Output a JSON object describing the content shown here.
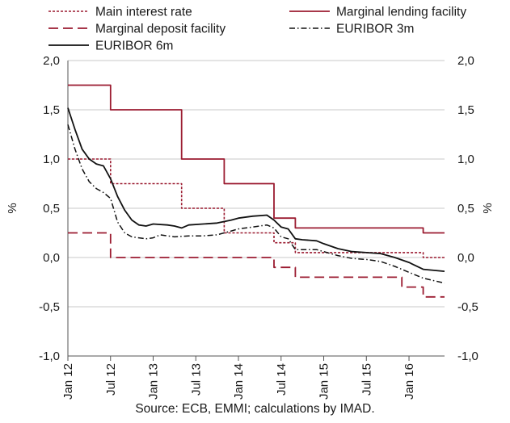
{
  "chart_data": {
    "type": "line",
    "title": "",
    "ylabel_left": "%",
    "ylabel_right": "%",
    "ylim": [
      -1.0,
      2.0
    ],
    "y_ticks": [
      "2,0",
      "1,5",
      "1,0",
      "0,5",
      "0,0",
      "-0,5",
      "-1,0"
    ],
    "y_tick_values": [
      2.0,
      1.5,
      1.0,
      0.5,
      0.0,
      -0.5,
      -1.0
    ],
    "x_ticks": [
      "Jan 12",
      "Jul 12",
      "Jan 13",
      "Jul 13",
      "Jan 14",
      "Jul 14",
      "Jan 15",
      "Jul 15",
      "Jan 16"
    ],
    "x_tick_values": [
      "2012-01",
      "2012-07",
      "2013-01",
      "2013-07",
      "2014-01",
      "2014-07",
      "2015-01",
      "2015-07",
      "2016-01"
    ],
    "xlim": [
      "2012-01",
      "2016-06"
    ],
    "grid": "horizontal",
    "legend_placement": "top",
    "series": [
      {
        "name": "Main interest rate",
        "style": "dotted",
        "color": "#9b1b30",
        "step": true,
        "points": [
          [
            "2012-01",
            1.0
          ],
          [
            "2012-07",
            0.75
          ],
          [
            "2013-05",
            0.5
          ],
          [
            "2013-11",
            0.25
          ],
          [
            "2014-06",
            0.15
          ],
          [
            "2014-09",
            0.05
          ],
          [
            "2016-03",
            0.0
          ],
          [
            "2016-06",
            0.0
          ]
        ]
      },
      {
        "name": "Marginal lending facility",
        "style": "solid",
        "color": "#9b1b30",
        "step": true,
        "points": [
          [
            "2012-01",
            1.75
          ],
          [
            "2012-07",
            1.5
          ],
          [
            "2013-05",
            1.0
          ],
          [
            "2013-11",
            0.75
          ],
          [
            "2014-06",
            0.4
          ],
          [
            "2014-09",
            0.3
          ],
          [
            "2016-03",
            0.25
          ],
          [
            "2016-06",
            0.25
          ]
        ]
      },
      {
        "name": "Marginal deposit facility",
        "style": "dashed",
        "color": "#9b1b30",
        "step": true,
        "points": [
          [
            "2012-01",
            0.25
          ],
          [
            "2012-07",
            0.0
          ],
          [
            "2014-06",
            -0.1
          ],
          [
            "2014-09",
            -0.2
          ],
          [
            "2015-12",
            -0.3
          ],
          [
            "2016-03",
            -0.4
          ],
          [
            "2016-06",
            -0.4
          ]
        ]
      },
      {
        "name": "EURIBOR 3m",
        "style": "dashdot",
        "color": "#111111",
        "step": false,
        "points": [
          [
            "2012-01",
            1.35
          ],
          [
            "2012-02",
            1.1
          ],
          [
            "2012-03",
            0.9
          ],
          [
            "2012-04",
            0.77
          ],
          [
            "2012-05",
            0.7
          ],
          [
            "2012-06",
            0.66
          ],
          [
            "2012-07",
            0.6
          ],
          [
            "2012-08",
            0.36
          ],
          [
            "2012-09",
            0.25
          ],
          [
            "2012-10",
            0.21
          ],
          [
            "2012-12",
            0.19
          ],
          [
            "2013-01",
            0.2
          ],
          [
            "2013-02",
            0.23
          ],
          [
            "2013-04",
            0.21
          ],
          [
            "2013-06",
            0.22
          ],
          [
            "2013-08",
            0.22
          ],
          [
            "2013-10",
            0.23
          ],
          [
            "2013-12",
            0.27
          ],
          [
            "2014-01",
            0.29
          ],
          [
            "2014-03",
            0.31
          ],
          [
            "2014-05",
            0.33
          ],
          [
            "2014-06",
            0.3
          ],
          [
            "2014-07",
            0.21
          ],
          [
            "2014-08",
            0.19
          ],
          [
            "2014-09",
            0.08
          ],
          [
            "2014-10",
            0.08
          ],
          [
            "2014-12",
            0.08
          ],
          [
            "2015-01",
            0.06
          ],
          [
            "2015-03",
            0.02
          ],
          [
            "2015-05",
            -0.01
          ],
          [
            "2015-07",
            -0.02
          ],
          [
            "2015-09",
            -0.04
          ],
          [
            "2015-11",
            -0.09
          ],
          [
            "2016-01",
            -0.15
          ],
          [
            "2016-03",
            -0.21
          ],
          [
            "2016-06",
            -0.26
          ]
        ]
      },
      {
        "name": "EURIBOR 6m",
        "style": "solid",
        "color": "#111111",
        "step": false,
        "points": [
          [
            "2012-01",
            1.52
          ],
          [
            "2012-02",
            1.3
          ],
          [
            "2012-03",
            1.1
          ],
          [
            "2012-04",
            1.0
          ],
          [
            "2012-05",
            0.95
          ],
          [
            "2012-06",
            0.93
          ],
          [
            "2012-07",
            0.8
          ],
          [
            "2012-08",
            0.62
          ],
          [
            "2012-09",
            0.48
          ],
          [
            "2012-10",
            0.38
          ],
          [
            "2012-11",
            0.33
          ],
          [
            "2012-12",
            0.32
          ],
          [
            "2013-01",
            0.34
          ],
          [
            "2013-03",
            0.33
          ],
          [
            "2013-04",
            0.32
          ],
          [
            "2013-05",
            0.3
          ],
          [
            "2013-06",
            0.33
          ],
          [
            "2013-08",
            0.34
          ],
          [
            "2013-10",
            0.35
          ],
          [
            "2013-12",
            0.38
          ],
          [
            "2014-01",
            0.4
          ],
          [
            "2014-03",
            0.42
          ],
          [
            "2014-05",
            0.43
          ],
          [
            "2014-06",
            0.38
          ],
          [
            "2014-07",
            0.31
          ],
          [
            "2014-08",
            0.29
          ],
          [
            "2014-09",
            0.19
          ],
          [
            "2014-10",
            0.18
          ],
          [
            "2014-12",
            0.17
          ],
          [
            "2015-01",
            0.14
          ],
          [
            "2015-03",
            0.09
          ],
          [
            "2015-05",
            0.06
          ],
          [
            "2015-07",
            0.05
          ],
          [
            "2015-09",
            0.04
          ],
          [
            "2015-11",
            0.0
          ],
          [
            "2016-01",
            -0.05
          ],
          [
            "2016-03",
            -0.12
          ],
          [
            "2016-06",
            -0.14
          ]
        ]
      }
    ]
  },
  "source": "Source: ECB, EMMI; calculations by IMAD."
}
